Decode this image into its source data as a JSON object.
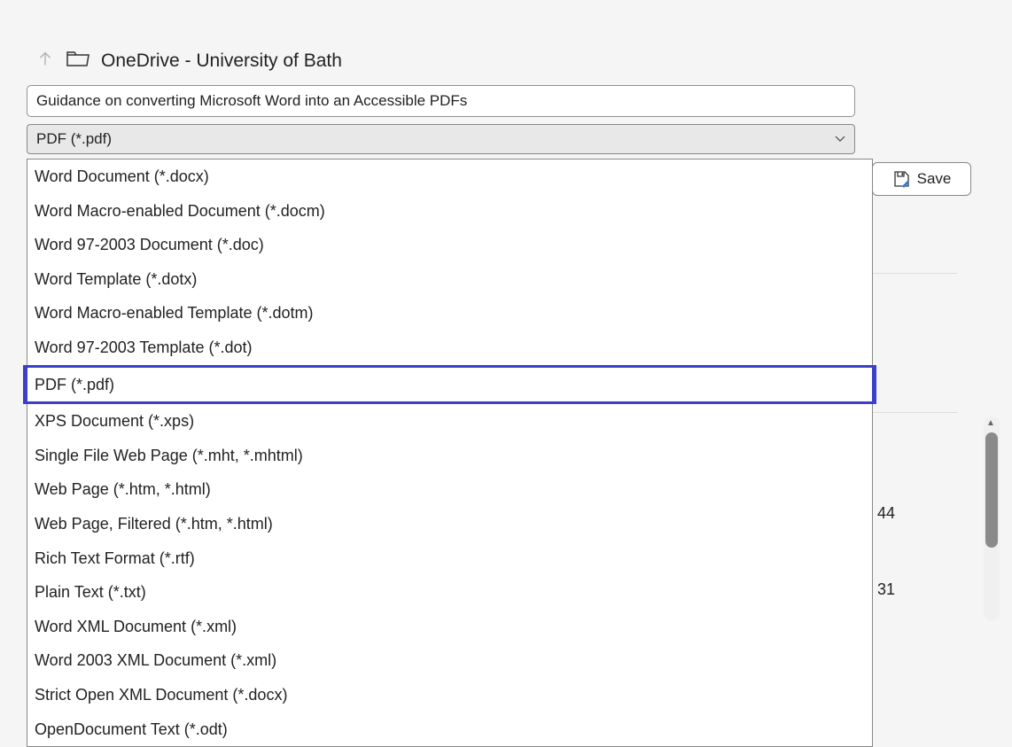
{
  "location": {
    "path": "OneDrive - University of Bath"
  },
  "filename": {
    "value": "Guidance on converting Microsoft Word into an Accessible PDFs"
  },
  "filetype": {
    "selected": "PDF (*.pdf)"
  },
  "dropdown": {
    "items": [
      "Word Document (*.docx)",
      "Word Macro-enabled Document (*.docm)",
      "Word 97-2003 Document (*.doc)",
      "Word Template (*.dotx)",
      "Word Macro-enabled Template (*.dotm)",
      "Word 97-2003 Template (*.dot)",
      "PDF (*.pdf)",
      "XPS Document (*.xps)",
      "Single File Web Page (*.mht, *.mhtml)",
      "Web Page (*.htm, *.html)",
      "Web Page, Filtered (*.htm, *.html)",
      "Rich Text Format (*.rtf)",
      "Plain Text (*.txt)",
      "Word XML Document (*.xml)",
      "Word 2003 XML Document (*.xml)",
      "Strict Open XML Document (*.docx)",
      "OpenDocument Text (*.odt)"
    ],
    "highlighted_index": 6
  },
  "buttons": {
    "save": "Save"
  },
  "background_values": {
    "val1": "44",
    "val2": "31"
  },
  "colors": {
    "highlight_border": "#3b3fcc",
    "dialog_bg": "#f5f5f5",
    "input_border": "#919191",
    "select_bg": "#e8e8e8",
    "text": "#222222",
    "save_icon_accent": "#2b7cd3"
  }
}
